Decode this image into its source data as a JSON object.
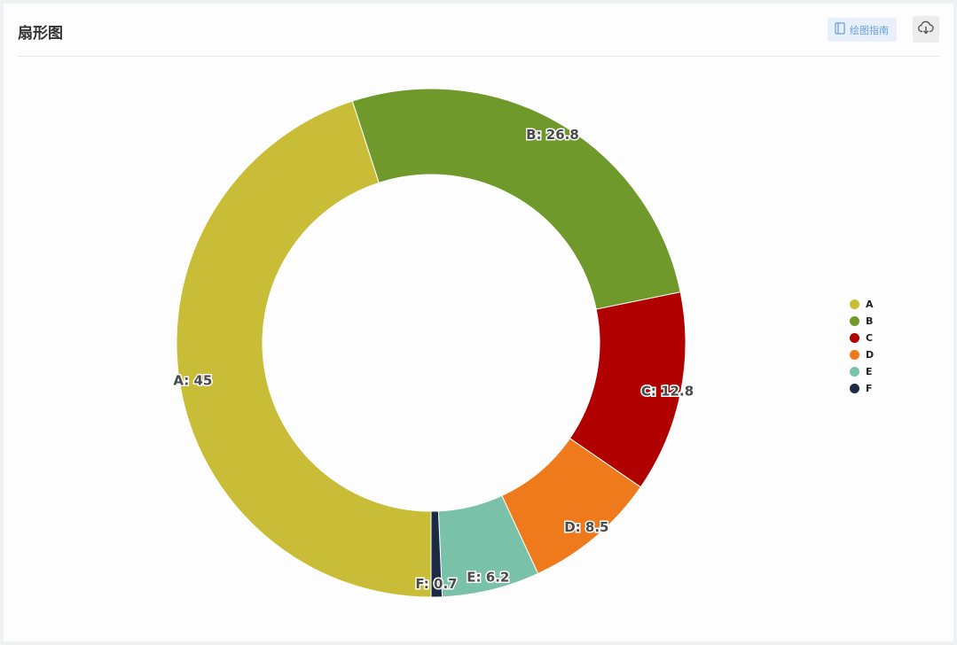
{
  "header": {
    "title": "扇形图",
    "guide_label": "绘图指南"
  },
  "icons": {
    "guide": "book-icon",
    "download": "cloud-download-icon"
  },
  "chart_data": {
    "type": "pie",
    "donut": true,
    "labels": [
      "A",
      "B",
      "C",
      "D",
      "E",
      "F"
    ],
    "values": [
      45,
      26.8,
      12.8,
      8.5,
      6.2,
      0.7
    ],
    "colors": [
      "#c9bd38",
      "#6f992b",
      "#b00000",
      "#ef7a1c",
      "#79c1a9",
      "#1c2b45"
    ],
    "start": "bottom",
    "direction": "clockwise",
    "legend_position": "right",
    "data_labels": [
      "A: 45",
      "B: 26.8",
      "C: 12.8",
      "D: 8.5",
      "E: 6.2",
      "F: 0.7"
    ]
  }
}
